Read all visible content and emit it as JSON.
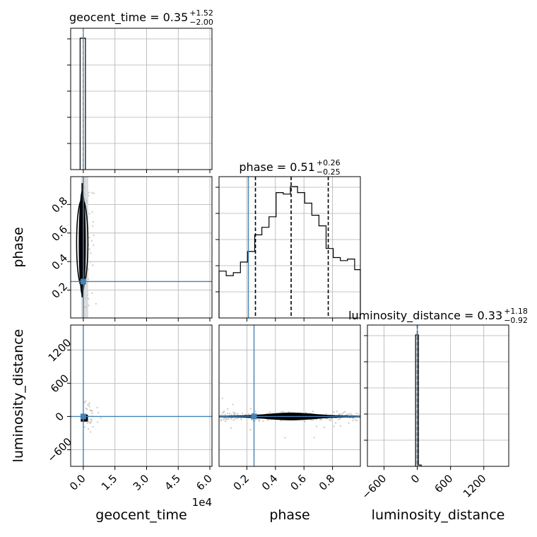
{
  "chart_data": {
    "type": "corner",
    "parameters": [
      "geocent_time",
      "phase",
      "luminosity_distance"
    ],
    "truth_color": "#4682b4",
    "truths": {
      "geocent_time": 0,
      "phase": 0.26,
      "luminosity_distance": 0
    },
    "axes": {
      "geocent_time": {
        "label": "geocent_time",
        "range": [
          -0.6,
          6.1
        ],
        "ticks": [
          0.0,
          1.5,
          3.0,
          4.5,
          6.0
        ],
        "tick_labels": [
          "0.0",
          "1.5",
          "3.0",
          "4.5",
          "6.0"
        ],
        "offset_text": "1e4"
      },
      "phase": {
        "label": "phase",
        "range": [
          0.005,
          0.995
        ],
        "ticks": [
          0.2,
          0.4,
          0.6,
          0.8
        ],
        "tick_labels": [
          "0.2",
          "0.4",
          "0.6",
          "0.8"
        ]
      },
      "luminosity_distance": {
        "label": "luminosity_distance",
        "range": [
          -900,
          1650
        ],
        "ticks": [
          -600,
          0,
          600,
          1200
        ],
        "tick_labels": [
          "−600",
          "0",
          "600",
          "1200"
        ]
      }
    },
    "titles": {
      "geocent_time": {
        "text": "geocent_time = 0.35",
        "plus": "+1.52",
        "minus": "−2.00"
      },
      "phase": {
        "text": "phase = 0.51",
        "plus": "+0.26",
        "minus": "−0.25"
      },
      "luminosity_distance": {
        "text": "luminosity_distance = 0.33",
        "plus": "+1.18",
        "minus": "−0.92"
      }
    },
    "histograms": {
      "geocent_time": {
        "edges": [
          -0.15,
          0.1
        ],
        "counts": [
          1.0
        ]
      },
      "phase": {
        "edges": [
          0.005,
          0.055,
          0.105,
          0.155,
          0.205,
          0.255,
          0.305,
          0.355,
          0.405,
          0.455,
          0.505,
          0.555,
          0.605,
          0.655,
          0.705,
          0.755,
          0.805,
          0.855,
          0.905,
          0.955,
          0.995
        ],
        "counts": [
          0.31,
          0.28,
          0.3,
          0.37,
          0.44,
          0.55,
          0.6,
          0.67,
          0.83,
          0.82,
          0.87,
          0.83,
          0.76,
          0.68,
          0.61,
          0.46,
          0.4,
          0.38,
          0.39,
          0.32
        ],
        "quantiles": [
          0.26,
          0.51,
          0.77
        ]
      },
      "luminosity_distance": {
        "edges": [
          -30,
          20,
          70
        ],
        "counts": [
          1.0,
          0.01
        ],
        "quantiles": [
          0
        ]
      }
    }
  }
}
